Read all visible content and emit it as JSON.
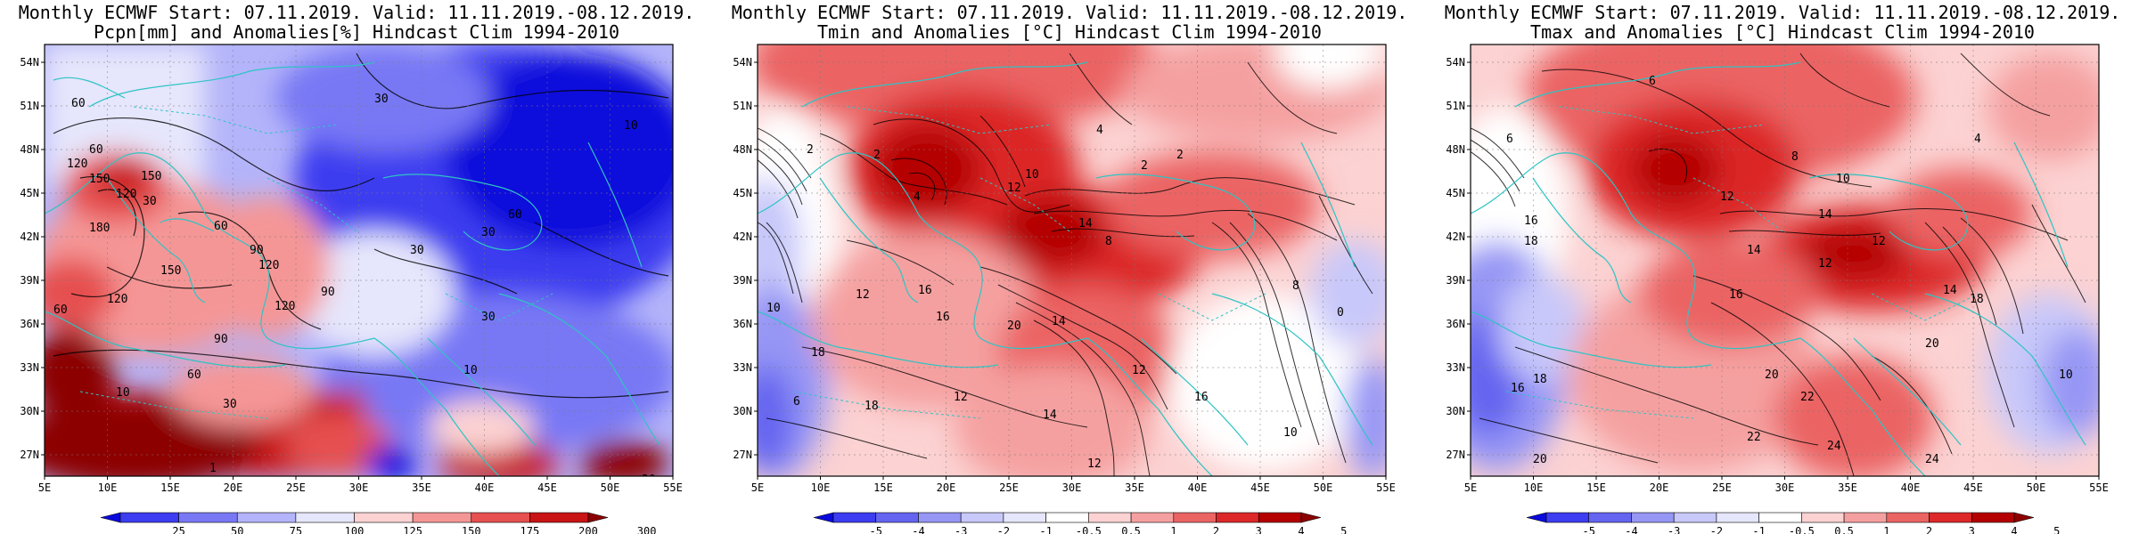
{
  "lat_ticks": [
    "54N",
    "51N",
    "48N",
    "45N",
    "42N",
    "39N",
    "36N",
    "33N",
    "30N",
    "27N"
  ],
  "lon_ticks": [
    "5E",
    "10E",
    "15E",
    "20E",
    "25E",
    "30E",
    "35E",
    "40E",
    "45E",
    "50E",
    "55E"
  ],
  "panels": [
    {
      "title_line1": "Monthly ECMWF Start: 07.11.2019. Valid: 11.11.2019.-08.12.2019.",
      "title_line2": "Pcpn[mm] and Anomalies[%] Hindcast Clim 1994-2010",
      "variable": "precipitation",
      "colorbar_labels": [
        "25",
        "50",
        "75",
        "100",
        "125",
        "150",
        "175",
        "200",
        "300"
      ],
      "colorbar_colors": [
        "#0a0adc",
        "#3c3cf0",
        "#7878f5",
        "#b4b4fa",
        "#e6e6fc",
        "#fcd2d2",
        "#f59696",
        "#e65050",
        "#c81414",
        "#8c0000"
      ],
      "contour_labels": [
        "60",
        "30",
        "10",
        "60",
        "150",
        "120",
        "120",
        "30",
        "60",
        "150",
        "90",
        "120",
        "180",
        "150",
        "120",
        "60",
        "90",
        "120",
        "30",
        "30",
        "60",
        "90",
        "10",
        "60",
        "30",
        "10",
        "1",
        "30",
        "30"
      ]
    },
    {
      "title_line1": "Monthly ECMWF Start: 07.11.2019. Valid: 11.11.2019.-08.12.2019.",
      "title_line2": "Tmin and Anomalies [°C] Hindcast Clim 1994-2010",
      "variable": "minimum temperature",
      "colorbar_labels": [
        "-5",
        "-4",
        "-3",
        "-2",
        "-1",
        "-0.5",
        "0.5",
        "1",
        "2",
        "3",
        "4",
        "5"
      ],
      "colorbar_colors": [
        "#0a0adc",
        "#3c3cf0",
        "#6464f0",
        "#9696f5",
        "#c8c8fa",
        "#e6e6fc",
        "#ffffff",
        "#fcd2d2",
        "#f5a0a0",
        "#eb6464",
        "#dc2828",
        "#b40000",
        "#8c0000"
      ],
      "contour_labels": [
        "2",
        "4",
        "2",
        "2",
        "10",
        "12",
        "14",
        "8",
        "10",
        "12",
        "16",
        "16",
        "18",
        "20",
        "14",
        "12",
        "6",
        "18",
        "12",
        "14",
        "16",
        "12",
        "10",
        "2",
        "8",
        "4",
        "0"
      ]
    },
    {
      "title_line1": "Monthly ECMWF Start: 07.11.2019. Valid: 11.11.2019.-08.12.2019.",
      "title_line2": "Tmax and Anomalies [°C] Hindcast Clim 1994-2010",
      "variable": "maximum temperature",
      "colorbar_labels": [
        "-5",
        "-4",
        "-3",
        "-2",
        "-1",
        "-0.5",
        "0.5",
        "1",
        "2",
        "3",
        "4",
        "5"
      ],
      "colorbar_colors": [
        "#0a0adc",
        "#3c3cf0",
        "#6464f0",
        "#9696f5",
        "#c8c8fa",
        "#e6e6fc",
        "#ffffff",
        "#fcd2d2",
        "#f5a0a0",
        "#eb6464",
        "#dc2828",
        "#b40000",
        "#8c0000"
      ],
      "contour_labels": [
        "6",
        "4",
        "8",
        "10",
        "6",
        "12",
        "14",
        "16",
        "18",
        "14",
        "12",
        "16",
        "20",
        "22",
        "24",
        "18",
        "16",
        "14",
        "18",
        "20",
        "22",
        "24",
        "20",
        "10",
        "12"
      ]
    }
  ]
}
